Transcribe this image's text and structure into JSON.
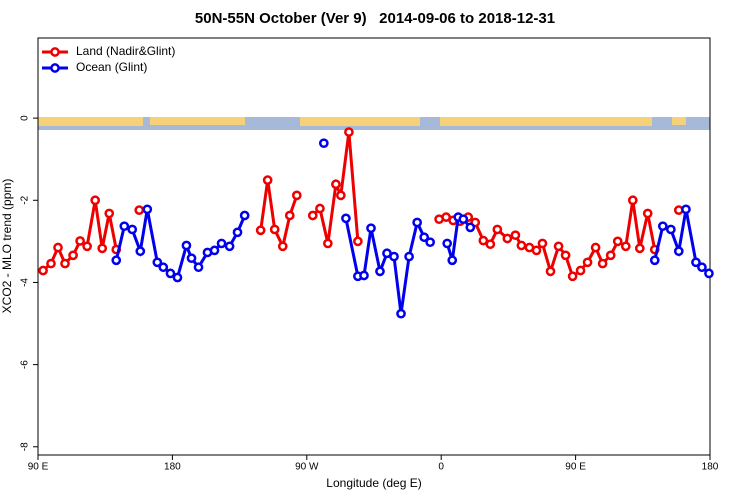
{
  "chart_data": {
    "type": "line",
    "title": "50N-55N October (Ver 9)   2014-09-06 to 2018-12-31",
    "xlabel": "Longitude (deg E)",
    "ylabel": "XCO2 - MLO trend (ppm)",
    "xlim": [
      90,
      540
    ],
    "xticks": [
      {
        "value": 90,
        "label": "90 E"
      },
      180,
      {
        "value": 270,
        "label": "90 W"
      },
      {
        "value": 360,
        "label": "0"
      },
      {
        "value": 450,
        "label": "90 E"
      },
      {
        "value": 540,
        "label": "180"
      }
    ],
    "ylim": [
      -8.2,
      1.95
    ],
    "yticks": [
      -8,
      -6,
      -4,
      -2,
      0
    ],
    "legend": "top-left",
    "series": [
      {
        "name": "Land (Nadir&Glint)",
        "color": "#ee0000",
        "x": [
          93.4,
          98.7,
          103.4,
          108.1,
          113.5,
          118.2,
          122.9,
          128.3,
          133.0,
          137.7,
          142.4,
          null,
          157.8,
          null,
          239.1,
          243.8,
          248.5,
          253.9,
          258.6,
          263.3,
          null,
          274.0,
          278.8,
          284.1,
          289.5,
          292.8,
          298.2,
          304.2,
          null,
          358.6,
          363.3,
          368.0,
          372.7,
          378.1,
          382.8,
          388.2,
          392.9,
          397.6,
          404.3,
          409.7,
          413.7,
          419.1,
          423.8,
          427.8,
          433.2,
          438.6,
          443.3,
          448.0,
          453.3,
          458.0,
          463.4,
          468.1,
          473.5,
          478.2,
          483.6,
          488.3,
          493.0,
          498.3,
          503.0,
          null,
          519.1
        ],
        "values": [
          -3.71,
          -3.54,
          -3.15,
          -3.54,
          -3.34,
          -2.99,
          -3.12,
          -2.0,
          -3.17,
          -2.32,
          -3.2,
          null,
          -2.24,
          null,
          -2.73,
          -1.51,
          -2.71,
          -3.12,
          -2.37,
          -1.88,
          null,
          -2.37,
          -2.2,
          -3.05,
          -1.61,
          -1.88,
          -0.34,
          -3.0,
          null,
          -2.46,
          -2.41,
          -2.49,
          -2.51,
          -2.41,
          -2.54,
          -2.98,
          -3.07,
          -2.71,
          -2.93,
          -2.85,
          -3.1,
          -3.15,
          -3.22,
          -3.05,
          -3.73,
          -3.12,
          -3.34,
          -3.85,
          -3.71,
          -3.51,
          -3.15,
          -3.54,
          -3.34,
          -3.0,
          -3.12,
          -2.0,
          -3.17,
          -2.32,
          -3.2,
          null,
          -2.24
        ]
      },
      {
        "name": "Ocean (Glint)",
        "color": "#0000ee",
        "x": [
          142.4,
          147.8,
          153.1,
          158.5,
          163.2,
          169.9,
          173.9,
          178.7,
          183.4,
          189.4,
          192.8,
          197.5,
          203.5,
          208.2,
          212.9,
          218.3,
          223.6,
          228.4,
          null,
          281.4,
          null,
          296.2,
          304.2,
          308.3,
          313.0,
          319.0,
          323.7,
          328.4,
          333.1,
          338.5,
          343.9,
          348.6,
          352.6,
          null,
          364.0,
          367.4,
          371.4,
          374.8,
          379.5,
          null,
          503.0,
          508.4,
          513.8,
          519.1,
          523.9,
          530.6,
          534.6,
          539.3
        ],
        "values": [
          -3.46,
          -2.63,
          -2.71,
          -3.24,
          -2.22,
          -3.51,
          -3.63,
          -3.78,
          -3.88,
          -3.1,
          -3.41,
          -3.63,
          -3.27,
          -3.22,
          -3.05,
          -3.12,
          -2.78,
          -2.37,
          null,
          -0.61,
          null,
          -2.44,
          -3.85,
          -3.83,
          -2.68,
          -3.73,
          -3.29,
          -3.37,
          -4.76,
          -3.37,
          -2.54,
          -2.9,
          -3.02,
          null,
          -3.05,
          -3.46,
          -2.41,
          -2.46,
          -2.66,
          null,
          -3.46,
          -2.63,
          -2.71,
          -3.24,
          -2.22,
          -3.51,
          -3.63,
          -3.78
        ]
      }
    ]
  }
}
